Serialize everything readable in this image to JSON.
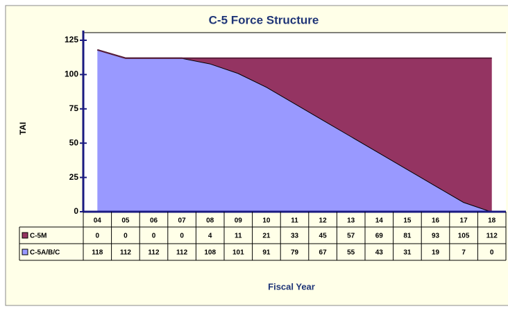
{
  "chart_data": {
    "type": "stacked_area",
    "title": "C-5 Force Structure",
    "ylabel": "TAI",
    "xlabel": "Fiscal Year",
    "categories": [
      "04",
      "05",
      "06",
      "07",
      "08",
      "09",
      "10",
      "11",
      "12",
      "13",
      "14",
      "15",
      "16",
      "17",
      "18"
    ],
    "series": [
      {
        "name": "C-5M",
        "color": "#943462",
        "values": [
          0,
          0,
          0,
          0,
          4,
          11,
          21,
          33,
          45,
          57,
          69,
          81,
          93,
          105,
          112
        ]
      },
      {
        "name": "C-5A/B/C",
        "color": "#9999ff",
        "values": [
          118,
          112,
          112,
          112,
          108,
          101,
          91,
          79,
          67,
          55,
          43,
          31,
          19,
          7,
          0
        ]
      }
    ],
    "ylim": [
      0,
      125
    ],
    "yticks": [
      0,
      25,
      50,
      75,
      100,
      125
    ],
    "grid": false
  }
}
